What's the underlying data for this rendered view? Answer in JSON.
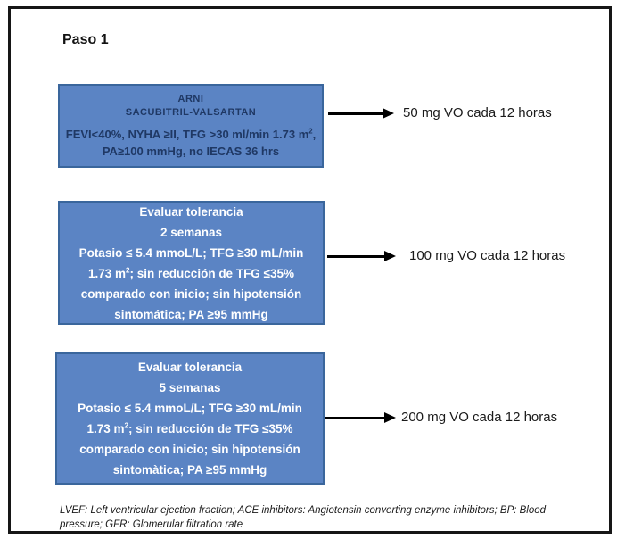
{
  "title": "Paso 1",
  "colors": {
    "box_fill": "#5b84c4",
    "box_border": "#3a669c",
    "box1_text": "#1f3864",
    "box_light_text": "#ffffff",
    "arrow": "#000000",
    "frame_border": "#161616"
  },
  "steps": [
    {
      "box_lines": [
        {
          "pre": "ARNI"
        },
        {
          "pre": "SACUBITRIL-VALSARTAN"
        },
        {
          "pre": "FEVI<40%, NYHA ≥II, TFG >30 ml/min 1.73 m",
          "sup": "2",
          "post": ","
        },
        {
          "pre": "PA≥100 mmHg, no IECAS 36 hrs"
        }
      ],
      "dose": "50 mg VO cada 12 horas"
    },
    {
      "box_lines": [
        {
          "pre": "Evaluar tolerancia"
        },
        {
          "pre": "2 semanas"
        },
        {
          "pre": "Potasio ≤ 5.4 mmoL/L; TFG ≥30 mL/min"
        },
        {
          "pre": "1.73 m",
          "sup": "2",
          "post": "; sin reducción de TFG ≤35%"
        },
        {
          "pre": "comparado con inicio; sin hipotensión"
        },
        {
          "pre": "sintomática; PA ≥95 mmHg"
        }
      ],
      "dose": "100 mg VO cada 12 horas"
    },
    {
      "box_lines": [
        {
          "pre": "Evaluar tolerancia"
        },
        {
          "pre": "5 semanas"
        },
        {
          "pre": "Potasio ≤ 5.4 mmoL/L; TFG ≥30 mL/min"
        },
        {
          "pre": "1.73 m",
          "sup": "2",
          "post": "; sin reducción de TFG ≤35%"
        },
        {
          "pre": "comparado con inicio; sin hipotensión"
        },
        {
          "pre": "sintomàtica; PA ≥95 mmHg"
        }
      ],
      "dose": "200 mg VO cada 12 horas"
    }
  ],
  "footnote": {
    "line1": "LVEF: Left ventricular ejection fraction; ACE inhibitors: Angiotensin converting enzyme inhibitors; BP: Blood",
    "line2": "pressure; GFR: Glomerular filtration rate"
  }
}
